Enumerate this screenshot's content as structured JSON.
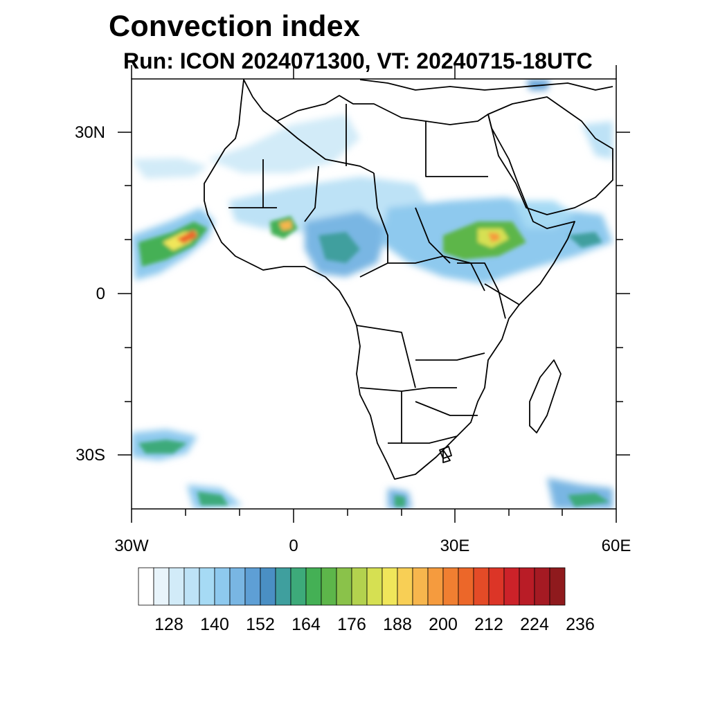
{
  "title": "Convection index",
  "subtitle": "Run: ICON 2024071300,  VT: 20240715-18UTC",
  "map": {
    "lon_range": [
      -30,
      60
    ],
    "lat_range": [
      -40,
      40
    ],
    "lat_labels": [
      "30N",
      "0",
      "30S"
    ],
    "lon_labels": [
      "30W",
      "0",
      "30E",
      "60E"
    ]
  },
  "colorbar": {
    "colors": [
      "#ffffff",
      "#e8f4fb",
      "#d2ebf8",
      "#bde2f6",
      "#a6daf4",
      "#8ec9ee",
      "#79b6e3",
      "#5e9fd5",
      "#4a8fc4",
      "#3f9f9e",
      "#3daa7a",
      "#44b055",
      "#5db64a",
      "#8ac24a",
      "#b3d24e",
      "#d6e052",
      "#f0e65a",
      "#f8cf55",
      "#f7b64d",
      "#f59b3e",
      "#f07f31",
      "#ec6729",
      "#e44b27",
      "#dc3527",
      "#cc2229",
      "#b91c26",
      "#a51a23",
      "#8f1a1d"
    ],
    "labels": [
      "128",
      "140",
      "152",
      "164",
      "176",
      "188",
      "200",
      "212",
      "224",
      "236"
    ]
  }
}
